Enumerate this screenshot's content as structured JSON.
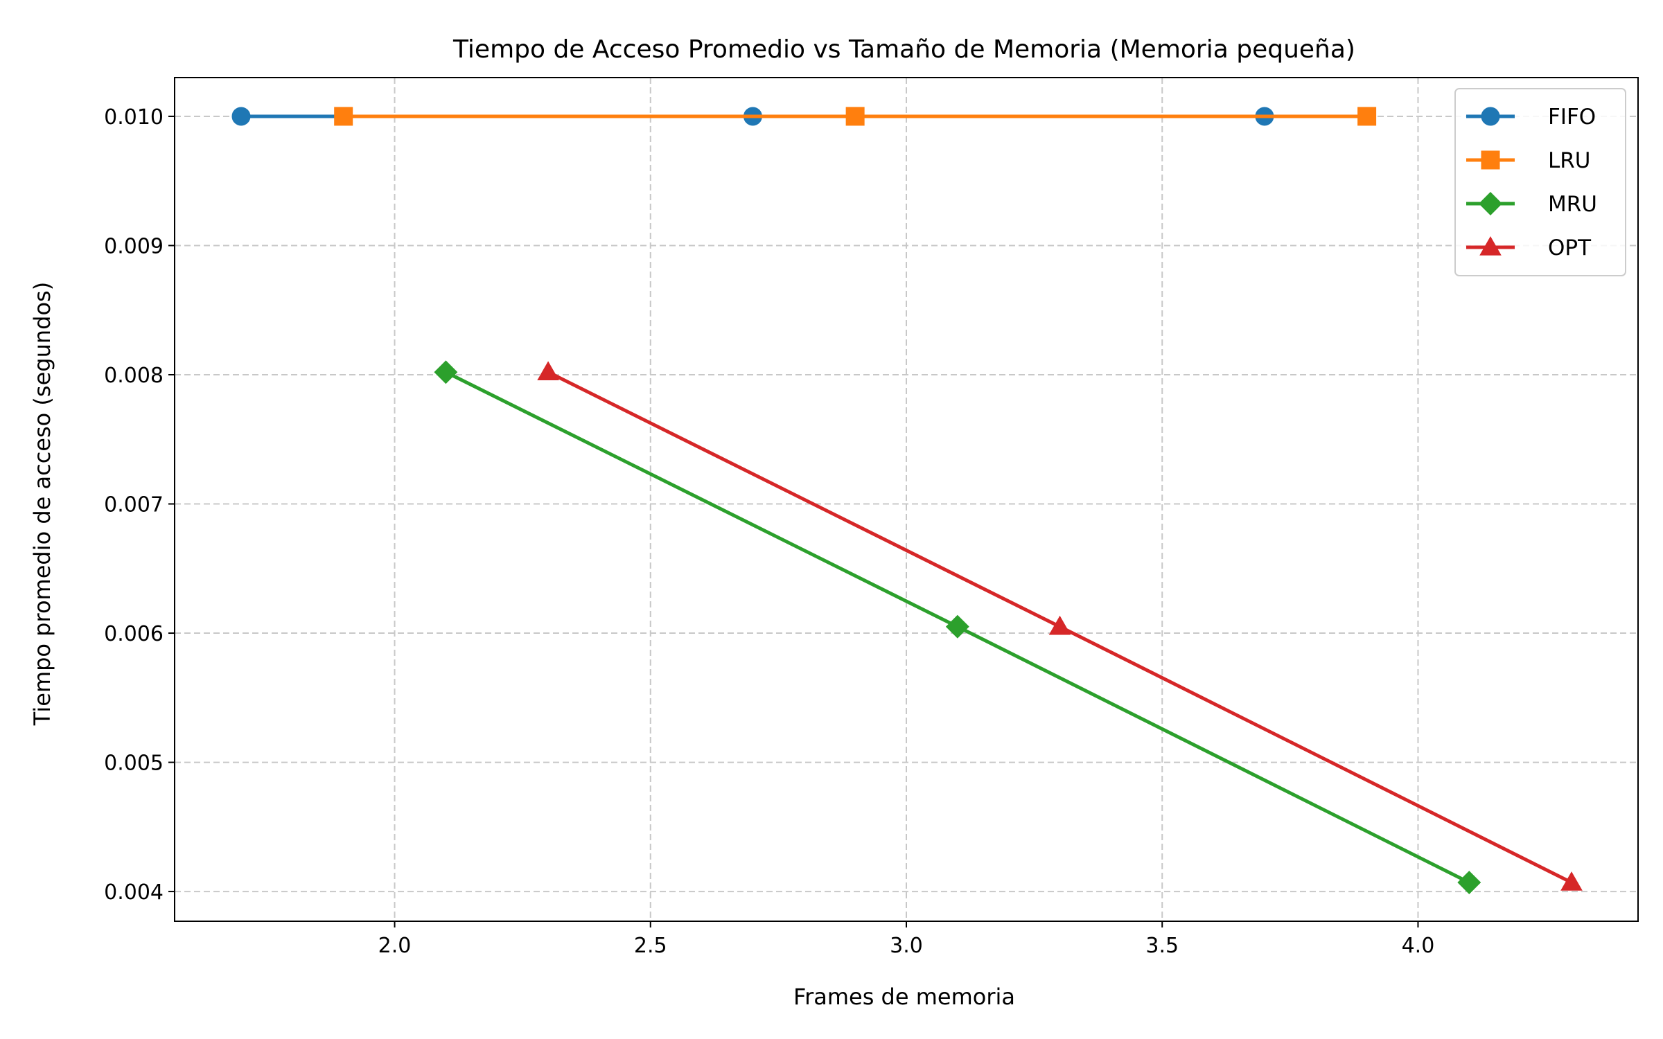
{
  "chart_data": {
    "type": "line",
    "title": "Tiempo de Acceso Promedio vs Tamaño de Memoria (Memoria pequeña)",
    "xlabel": "Frames de memoria",
    "ylabel": "Tiempo promedio de acceso (segundos)",
    "xlim": [
      1.57,
      4.43
    ],
    "ylim": [
      0.00377,
      0.0103
    ],
    "xticks": [
      2.0,
      2.5,
      3.0,
      3.5,
      4.0
    ],
    "xtick_labels": [
      "2.0",
      "2.5",
      "3.0",
      "3.5",
      "4.0"
    ],
    "yticks": [
      0.004,
      0.005,
      0.006,
      0.007,
      0.008,
      0.009,
      0.01
    ],
    "ytick_labels": [
      "0.004",
      "0.005",
      "0.006",
      "0.007",
      "0.008",
      "0.009",
      "0.010"
    ],
    "grid": true,
    "legend_position": "top-right",
    "series": [
      {
        "name": "FIFO",
        "color": "#1f77b4",
        "marker": "circle",
        "x": [
          1.7,
          2.7,
          3.7
        ],
        "y": [
          0.01,
          0.01,
          0.01
        ]
      },
      {
        "name": "LRU",
        "color": "#ff7f0e",
        "marker": "square",
        "x": [
          1.9,
          2.9,
          3.9
        ],
        "y": [
          0.01,
          0.01,
          0.01
        ]
      },
      {
        "name": "MRU",
        "color": "#2ca02c",
        "marker": "diamond",
        "x": [
          2.1,
          3.1,
          4.1
        ],
        "y": [
          0.00802,
          0.00605,
          0.00407
        ]
      },
      {
        "name": "OPT",
        "color": "#d62728",
        "marker": "triangle",
        "x": [
          2.3,
          3.3,
          4.3
        ],
        "y": [
          0.00802,
          0.00605,
          0.00407
        ]
      }
    ]
  }
}
